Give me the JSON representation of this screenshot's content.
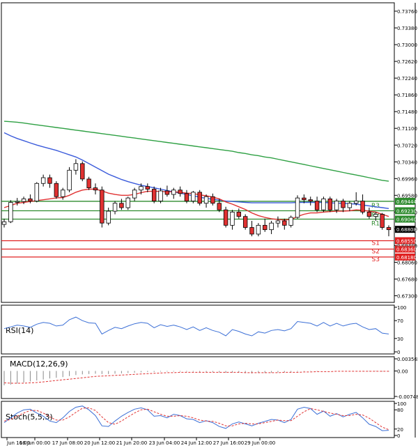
{
  "chart_data": [
    {
      "type": "candlestick",
      "title": "",
      "y_ticks": [
        "0.73760",
        "0.73380",
        "0.73000",
        "0.72620",
        "0.72240",
        "0.71860",
        "0.71480",
        "0.71100",
        "0.70720",
        "0.70340",
        "0.69960",
        "0.69580",
        "0.69200",
        "0.68820",
        "0.68440",
        "0.68060",
        "0.67680",
        "0.67300"
      ],
      "ylim": [
        0.6715,
        0.7395
      ],
      "current_price": "0.68808",
      "candles_ohlc": [
        [
          0.6892,
          0.6905,
          0.6885,
          0.6898
        ],
        [
          0.6898,
          0.6947,
          0.6895,
          0.6942
        ],
        [
          0.6942,
          0.6952,
          0.6935,
          0.6944
        ],
        [
          0.6944,
          0.6955,
          0.6938,
          0.695
        ],
        [
          0.695,
          0.696,
          0.694,
          0.6945
        ],
        [
          0.6945,
          0.6988,
          0.6942,
          0.6985
        ],
        [
          0.6985,
          0.7005,
          0.6978,
          0.6998
        ],
        [
          0.6998,
          0.7005,
          0.6975,
          0.6985
        ],
        [
          0.6985,
          0.699,
          0.695,
          0.6955
        ],
        [
          0.6955,
          0.6975,
          0.6948,
          0.697
        ],
        [
          0.697,
          0.7022,
          0.6965,
          0.7015
        ],
        [
          0.7015,
          0.704,
          0.7005,
          0.703
        ],
        [
          0.703,
          0.7035,
          0.699,
          0.6995
        ],
        [
          0.6995,
          0.7,
          0.697,
          0.6975
        ],
        [
          0.6975,
          0.6985,
          0.696,
          0.697
        ],
        [
          0.697,
          0.6978,
          0.6885,
          0.6895
        ],
        [
          0.6895,
          0.693,
          0.689,
          0.6922
        ],
        [
          0.6922,
          0.6945,
          0.6915,
          0.694
        ],
        [
          0.694,
          0.695,
          0.6925,
          0.693
        ],
        [
          0.693,
          0.6955,
          0.6925,
          0.6952
        ],
        [
          0.6952,
          0.6975,
          0.6945,
          0.697
        ],
        [
          0.697,
          0.6985,
          0.696,
          0.6978
        ],
        [
          0.6978,
          0.6985,
          0.6965,
          0.6972
        ],
        [
          0.6972,
          0.6978,
          0.694,
          0.6945
        ],
        [
          0.6945,
          0.6975,
          0.694,
          0.6968
        ],
        [
          0.6968,
          0.698,
          0.6955,
          0.696
        ],
        [
          0.696,
          0.6975,
          0.695,
          0.697
        ],
        [
          0.697,
          0.6978,
          0.6955,
          0.6962
        ],
        [
          0.6962,
          0.697,
          0.694,
          0.6945
        ],
        [
          0.6945,
          0.6968,
          0.694,
          0.6965
        ],
        [
          0.6965,
          0.697,
          0.6935,
          0.694
        ],
        [
          0.694,
          0.696,
          0.693,
          0.6955
        ],
        [
          0.6955,
          0.6962,
          0.6935,
          0.694
        ],
        [
          0.694,
          0.695,
          0.692,
          0.6925
        ],
        [
          0.6925,
          0.6932,
          0.6885,
          0.689
        ],
        [
          0.689,
          0.6925,
          0.688,
          0.692
        ],
        [
          0.692,
          0.6928,
          0.6905,
          0.691
        ],
        [
          0.691,
          0.6915,
          0.688,
          0.6885
        ],
        [
          0.6885,
          0.69,
          0.6865,
          0.687
        ],
        [
          0.687,
          0.6895,
          0.6865,
          0.689
        ],
        [
          0.689,
          0.6905,
          0.6875,
          0.688
        ],
        [
          0.688,
          0.69,
          0.687,
          0.6895
        ],
        [
          0.6895,
          0.691,
          0.6885,
          0.69
        ],
        [
          0.69,
          0.6905,
          0.688,
          0.689
        ],
        [
          0.689,
          0.6912,
          0.6885,
          0.6908
        ],
        [
          0.6908,
          0.6958,
          0.6905,
          0.6952
        ],
        [
          0.6952,
          0.696,
          0.694,
          0.6948
        ],
        [
          0.6948,
          0.6955,
          0.6935,
          0.6945
        ],
        [
          0.6945,
          0.6955,
          0.692,
          0.6925
        ],
        [
          0.6925,
          0.6955,
          0.692,
          0.695
        ],
        [
          0.695,
          0.6955,
          0.692,
          0.6925
        ],
        [
          0.6925,
          0.695,
          0.6918,
          0.6945
        ],
        [
          0.6945,
          0.695,
          0.692,
          0.693
        ],
        [
          0.693,
          0.6945,
          0.6922,
          0.694
        ],
        [
          0.694,
          0.6965,
          0.6935,
          0.6945
        ],
        [
          0.6945,
          0.696,
          0.6915,
          0.692
        ],
        [
          0.692,
          0.693,
          0.6905,
          0.691
        ],
        [
          0.691,
          0.692,
          0.69,
          0.6915
        ],
        [
          0.6915,
          0.6918,
          0.688,
          0.6885
        ],
        [
          0.6885,
          0.689,
          0.6865,
          0.688
        ]
      ],
      "series": [
        {
          "name": "",
          "color": "#2ea043",
          "values": [
            0.7126,
            0.7125,
            0.7124,
            0.7122,
            0.712,
            0.7118,
            0.7116,
            0.7114,
            0.7112,
            0.711,
            0.7108,
            0.7106,
            0.7104,
            0.7102,
            0.71,
            0.7098,
            0.7096,
            0.7094,
            0.7092,
            0.709,
            0.7088,
            0.7086,
            0.7084,
            0.7082,
            0.708,
            0.7078,
            0.7076,
            0.7074,
            0.7072,
            0.707,
            0.7068,
            0.7066,
            0.7064,
            0.7062,
            0.706,
            0.7058,
            0.7055,
            0.7053,
            0.705,
            0.7048,
            0.7045,
            0.7043,
            0.704,
            0.7037,
            0.7034,
            0.7031,
            0.7028,
            0.7025,
            0.7022,
            0.7019,
            0.7016,
            0.7013,
            0.701,
            0.7007,
            0.7004,
            0.7001,
            0.6998,
            0.6995,
            0.6992,
            0.699
          ]
        },
        {
          "name": "",
          "color": "#3b5bdb",
          "values": [
            0.71,
            0.7093,
            0.7087,
            0.7082,
            0.7077,
            0.7072,
            0.7068,
            0.7064,
            0.706,
            0.7055,
            0.705,
            0.7045,
            0.7038,
            0.703,
            0.7022,
            0.7014,
            0.7006,
            0.7,
            0.6994,
            0.6989,
            0.6985,
            0.6981,
            0.6978,
            0.6975,
            0.6972,
            0.6969,
            0.6966,
            0.6963,
            0.696,
            0.6957,
            0.6954,
            0.6951,
            0.6949,
            0.6947,
            0.6945,
            0.6944,
            0.6943,
            0.6942,
            0.6941,
            0.6941,
            0.6941,
            0.6941,
            0.6941,
            0.6941,
            0.6941,
            0.6942,
            0.6942,
            0.6942,
            0.6942,
            0.6942,
            0.6941,
            0.694,
            0.694,
            0.6939,
            0.6938,
            0.6936,
            0.6934,
            0.6932,
            0.693,
            0.6928
          ]
        },
        {
          "name": "",
          "color": "#e03131",
          "values": [
            0.693,
            0.6935,
            0.694,
            0.6942,
            0.6944,
            0.6946,
            0.6948,
            0.695,
            0.6952,
            0.6953,
            0.6958,
            0.6965,
            0.697,
            0.6972,
            0.6972,
            0.6968,
            0.6963,
            0.696,
            0.6958,
            0.6958,
            0.696,
            0.6964,
            0.6967,
            0.6967,
            0.6967,
            0.6966,
            0.6966,
            0.6965,
            0.6963,
            0.6962,
            0.6959,
            0.6957,
            0.6954,
            0.695,
            0.6943,
            0.6938,
            0.6932,
            0.6926,
            0.6918,
            0.6912,
            0.6908,
            0.6905,
            0.6903,
            0.6902,
            0.6903,
            0.691,
            0.6915,
            0.6918,
            0.6918,
            0.692,
            0.6921,
            0.6922,
            0.6922,
            0.6923,
            0.6925,
            0.6924,
            0.6922,
            0.692,
            0.6915,
            0.691
          ]
        }
      ],
      "levels": [
        {
          "name": "R3",
          "value": "0.69444",
          "color": "#2e8b2e"
        },
        {
          "name": "R2",
          "value": "0.69230",
          "color": "#2e8b2e"
        },
        {
          "name": "R1",
          "value": "0.69040",
          "color": "#2e8b2e"
        },
        {
          "name": "S1",
          "value": "0.68550",
          "color": "#e02020"
        },
        {
          "name": "S2",
          "value": "0.68360",
          "color": "#e02020"
        },
        {
          "name": "S3",
          "value": "0.68180",
          "color": "#e02020"
        }
      ],
      "partial_label": "0.68460",
      "x_ticks": [
        "Jun 16:00",
        "16 Jun 00:00",
        "17 Jun 08:00",
        "20 Jun 12:00",
        "21 Jun 20:00",
        "23 Jun 04:00",
        "24 Jun 12:00",
        "27 Jun 16:00",
        "29 Jun 00:00"
      ]
    },
    {
      "type": "line",
      "title": "RSI(14)",
      "y_ticks": [
        "100",
        "70",
        "30",
        "0"
      ],
      "ylim": [
        0,
        100
      ],
      "series": [
        {
          "name": "RSI(14)",
          "color": "#3b6fd6",
          "values": [
            52,
            56,
            60,
            58,
            55,
            62,
            66,
            64,
            58,
            60,
            72,
            78,
            70,
            65,
            64,
            40,
            48,
            55,
            52,
            58,
            63,
            66,
            64,
            54,
            61,
            57,
            60,
            56,
            50,
            56,
            48,
            54,
            48,
            44,
            36,
            50,
            46,
            40,
            36,
            45,
            42,
            48,
            50,
            47,
            52,
            68,
            66,
            64,
            58,
            66,
            58,
            64,
            58,
            62,
            64,
            56,
            50,
            52,
            42,
            40
          ]
        }
      ]
    },
    {
      "type": "bar",
      "title": "MACD(12,26,9)",
      "y_ticks": [
        "0.003565",
        "0.00",
        "-0.007482"
      ],
      "ylim": [
        -0.007482,
        0.003565
      ],
      "series": [
        {
          "name": "",
          "color": "#888888",
          "values": [
            -0.0042,
            -0.004,
            -0.0037,
            -0.0034,
            -0.0031,
            -0.0028,
            -0.0025,
            -0.0022,
            -0.002,
            -0.0018,
            -0.0015,
            -0.0012,
            -0.001,
            -0.0009,
            -0.0008,
            -0.0009,
            -0.0009,
            -0.0008,
            -0.0007,
            -0.0006,
            -0.0005,
            -0.0004,
            -0.0003,
            -0.0003,
            -0.0002,
            -0.0002,
            -0.0002,
            -0.0002,
            -0.0002,
            -0.0002,
            -0.0003,
            -0.0003,
            -0.0003,
            -0.0004,
            -0.0005,
            -0.0005,
            -0.0005,
            -0.0006,
            -0.0007,
            -0.0006,
            -0.0006,
            -0.0005,
            -0.0004,
            -0.0004,
            -0.0003,
            -0.0002,
            -0.0001,
            -0.0001,
            -0.0001,
            0.0,
            0.0,
            0.0,
            0.0,
            0.0,
            0.0,
            -0.0001,
            -0.0001,
            -0.0001,
            -0.0002,
            -0.0002
          ]
        },
        {
          "name": "",
          "color": "#e03131",
          "values": [
            -0.0035,
            -0.0036,
            -0.0036,
            -0.0036,
            -0.0035,
            -0.0034,
            -0.0032,
            -0.003,
            -0.0028,
            -0.0026,
            -0.0024,
            -0.0022,
            -0.002,
            -0.0018,
            -0.0016,
            -0.0015,
            -0.0014,
            -0.0013,
            -0.0012,
            -0.0011,
            -0.001,
            -0.0009,
            -0.0008,
            -0.0007,
            -0.0006,
            -0.0005,
            -0.0005,
            -0.0004,
            -0.0004,
            -0.0004,
            -0.0004,
            -0.0004,
            -0.0004,
            -0.0004,
            -0.0004,
            -0.0004,
            -0.0004,
            -0.0005,
            -0.0005,
            -0.0005,
            -0.0005,
            -0.0005,
            -0.0005,
            -0.0004,
            -0.0004,
            -0.0004,
            -0.0003,
            -0.0003,
            -0.0002,
            -0.0002,
            -0.0002,
            -0.0001,
            -0.0001,
            -0.0001,
            -0.0001,
            -0.0001,
            -0.0001,
            -0.0001,
            -0.0001,
            -0.0001
          ]
        }
      ]
    },
    {
      "type": "line",
      "title": "Stoch(5,5,3)",
      "y_ticks": [
        "100",
        "80",
        "20",
        "0"
      ],
      "ylim": [
        0,
        100
      ],
      "series": [
        {
          "name": "",
          "color": "#3b6fd6",
          "values": [
            40,
            55,
            70,
            80,
            82,
            70,
            60,
            45,
            40,
            55,
            75,
            88,
            92,
            80,
            62,
            30,
            28,
            45,
            60,
            72,
            82,
            86,
            80,
            60,
            62,
            55,
            66,
            62,
            52,
            50,
            40,
            46,
            40,
            28,
            22,
            36,
            42,
            36,
            30,
            38,
            44,
            50,
            48,
            40,
            50,
            82,
            88,
            84,
            66,
            76,
            60,
            68,
            58,
            66,
            72,
            55,
            35,
            28,
            15,
            16
          ]
        },
        {
          "name": "",
          "color": "#e03131",
          "values": [
            45,
            50,
            60,
            70,
            78,
            78,
            70,
            58,
            48,
            48,
            58,
            72,
            85,
            86,
            78,
            58,
            40,
            35,
            45,
            58,
            70,
            80,
            82,
            74,
            66,
            60,
            60,
            62,
            60,
            55,
            48,
            45,
            44,
            38,
            30,
            30,
            36,
            38,
            36,
            36,
            40,
            44,
            48,
            46,
            46,
            60,
            74,
            84,
            80,
            75,
            70,
            66,
            62,
            62,
            66,
            64,
            54,
            40,
            26,
            18
          ]
        }
      ]
    }
  ]
}
